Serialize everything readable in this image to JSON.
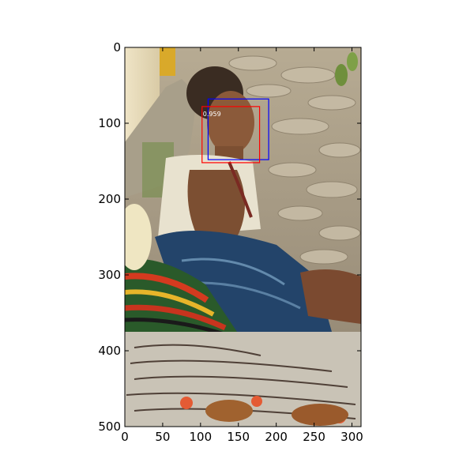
{
  "chart_data": {
    "type": "image_with_detections",
    "title": "",
    "xlabel": "",
    "ylabel": "",
    "xlim": [
      0,
      312
    ],
    "ylim": [
      500,
      0
    ],
    "x_ticks": [
      {
        "value": 0,
        "label": "0"
      },
      {
        "value": 50,
        "label": "50"
      },
      {
        "value": 100,
        "label": "100"
      },
      {
        "value": 150,
        "label": "150"
      },
      {
        "value": 200,
        "label": "200"
      },
      {
        "value": 250,
        "label": "250"
      },
      {
        "value": 300,
        "label": "300"
      }
    ],
    "y_ticks": [
      {
        "value": 0,
        "label": "0"
      },
      {
        "value": 100,
        "label": "100"
      },
      {
        "value": 200,
        "label": "200"
      },
      {
        "value": 300,
        "label": "300"
      },
      {
        "value": 400,
        "label": "400"
      },
      {
        "value": 500,
        "label": "500"
      }
    ],
    "boxes": [
      {
        "color": "#0000ff",
        "x0": 110,
        "y0": 68,
        "x1": 190,
        "y1": 148
      },
      {
        "color": "#ff0000",
        "x0": 102,
        "y0": 78,
        "x1": 178,
        "y1": 152,
        "score": "0.959"
      }
    ],
    "grid": false,
    "legend": "none"
  },
  "colors": {
    "axis": "#000000",
    "box_blue": "#0000ff",
    "box_red": "#ff0000",
    "score_text": "#ffffff"
  }
}
